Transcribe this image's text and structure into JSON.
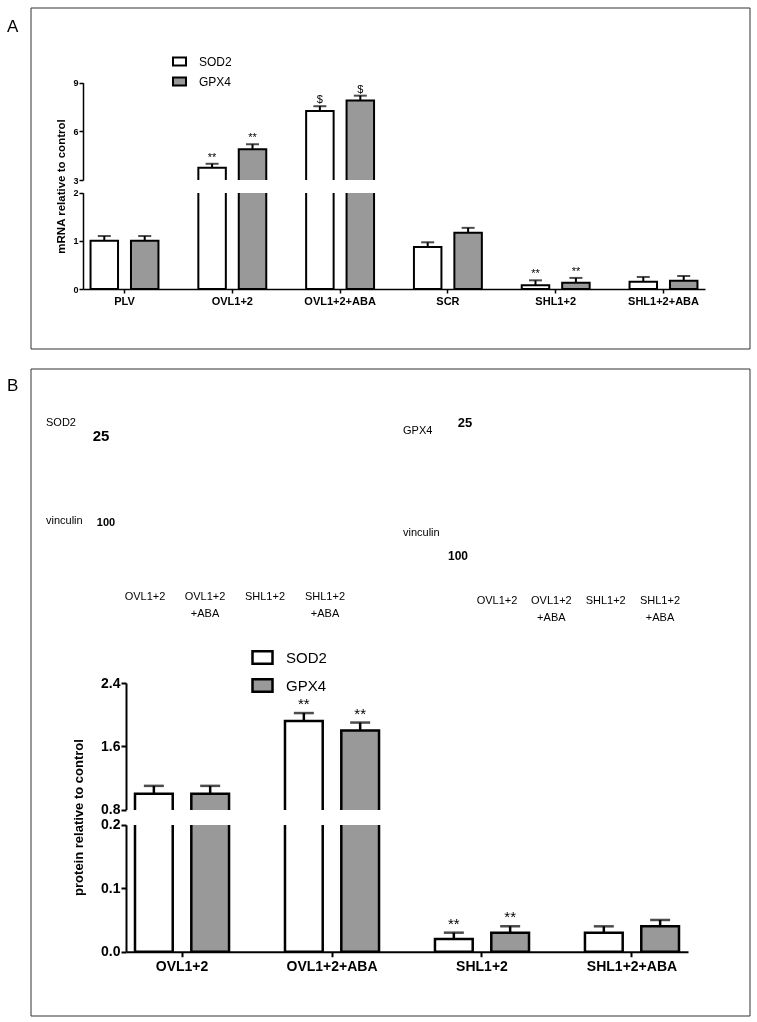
{
  "chart_data": [
    {
      "type": "bar",
      "categories": [
        "PLV",
        "OVL1+2",
        "OVL1+2+ABA",
        "SCR",
        "SHL1+2",
        "SHL1+2+ABA"
      ],
      "series": [
        {
          "name": "SOD2",
          "color": "#ffffff",
          "values": [
            null,
            3.75,
            7.25,
            null,
            null,
            null
          ],
          "errors": [
            null,
            0.25,
            0.3,
            null,
            null,
            null
          ]
        },
        {
          "name": "GPX4",
          "color": "#999999",
          "values": [
            null,
            4.9,
            7.9,
            null,
            null,
            null
          ],
          "errors": [
            null,
            0.3,
            0.3,
            null,
            null,
            null
          ]
        }
      ],
      "ylim": [
        3,
        9
      ],
      "yticks": [
        3,
        6,
        9
      ],
      "tick_labels": "y",
      "legend": "top left",
      "annotations": [
        "A",
        "**",
        "**",
        "$",
        "$"
      ]
    },
    {
      "type": "bar",
      "categories": [
        "PLV",
        "OVL1+2",
        "OVL1+2+ABA",
        "SCR",
        "SHL1+2",
        "SHL1+2+ABA"
      ],
      "series": [
        {
          "color": "#ffffff",
          "values": [
            1.0,
            null,
            null,
            0.87,
            0.08,
            0.15
          ],
          "errors": [
            0.1,
            null,
            null,
            0.1,
            0.1,
            0.1
          ]
        },
        {
          "color": "#999999",
          "values": [
            1.0,
            null,
            null,
            1.17,
            0.13,
            0.17
          ],
          "errors": [
            0.1,
            null,
            null,
            0.1,
            0.1,
            0.1
          ]
        }
      ],
      "ylim": [
        0,
        2
      ],
      "yticks": [
        0,
        1,
        2
      ],
      "ylabel": "mRNA relative to control",
      "annotations": [
        "**",
        "**"
      ]
    },
    {
      "type": "other",
      "categories": [
        "OVL1+2",
        "OVL1+2 +ABA",
        "SHL1+2",
        "SHL1+2 +ABA"
      ],
      "annotations": [
        "B",
        "SOD2",
        "25",
        "vinculin",
        "100"
      ]
    },
    {
      "type": "other",
      "categories": [
        "OVL1+2",
        "OVL1+2 +ABA",
        "SHL1+2",
        "SHL1+2 +ABA"
      ],
      "annotations": [
        "GPX4",
        "25",
        "vinculin",
        "100"
      ]
    },
    {
      "type": "bar",
      "categories": [
        "OVL1+2",
        "OVL1+2+ABA",
        "SHL1+2",
        "SHL1+2+ABA"
      ],
      "series": [
        {
          "name": "SOD2",
          "color": "#ffffff",
          "values": [
            1.0,
            1.92,
            null,
            null
          ],
          "errors": [
            0.1,
            0.1,
            null,
            null
          ]
        },
        {
          "name": "GPX4",
          "color": "#999999",
          "values": [
            1.0,
            1.8,
            null,
            null
          ],
          "errors": [
            0.1,
            0.1,
            null,
            null
          ]
        }
      ],
      "ylim": [
        0.8,
        2.4
      ],
      "yticks": [
        0.8,
        1.6,
        2.4
      ],
      "tick_labels": "y",
      "legend": "top left",
      "annotations": [
        "**",
        "**"
      ]
    },
    {
      "type": "bar",
      "categories": [
        "OVL1+2",
        "OVL1+2+ABA",
        "SHL1+2",
        "SHL1+2+ABA"
      ],
      "series": [
        {
          "color": "#ffffff",
          "values": [
            null,
            null,
            0.02,
            0.03
          ],
          "errors": [
            null,
            null,
            0.01,
            0.01
          ]
        },
        {
          "color": "#999999",
          "values": [
            null,
            null,
            0.03,
            0.04
          ],
          "errors": [
            null,
            null,
            0.01,
            0.01
          ]
        }
      ],
      "ylim": [
        0,
        0.2
      ],
      "yticks": [
        {
          "value": 0,
          "label": "0.0"
        },
        0.1,
        0.2
      ],
      "ylabel": "protein relative to control",
      "annotations": [
        "**",
        "**"
      ]
    }
  ]
}
